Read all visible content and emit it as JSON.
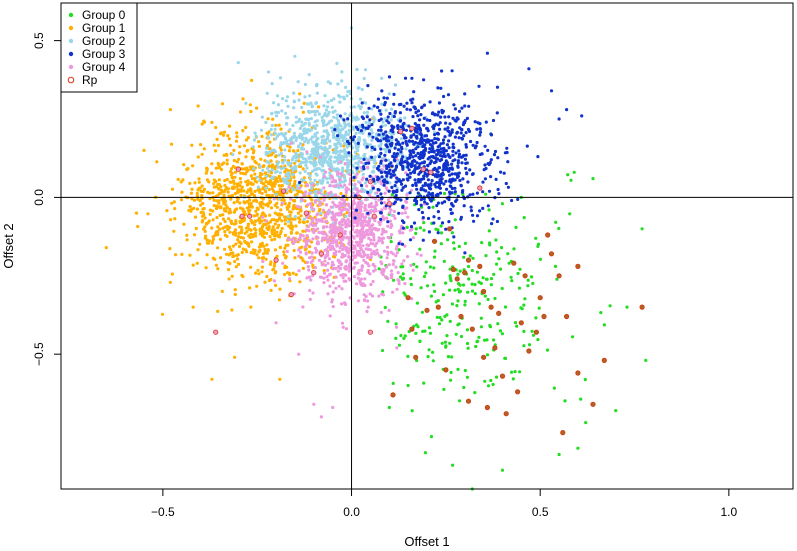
{
  "chart_data": {
    "type": "scatter",
    "xlabel": "Offset 1",
    "ylabel": "Offset 2",
    "xlim": [
      -0.77,
      1.17
    ],
    "ylim": [
      -0.93,
      0.62
    ],
    "x_ticks": [
      -0.5,
      0.0,
      0.5,
      1.0
    ],
    "x_tick_labels": [
      "−0.5",
      "0.0",
      "0.5",
      "1.0"
    ],
    "y_ticks": [
      -0.5,
      0.0,
      0.5
    ],
    "y_tick_labels": [
      "−0.5",
      "0.0",
      "0.5"
    ],
    "reference_lines": {
      "x": 0.0,
      "y": 0.0
    },
    "legend_position": "top-left",
    "grid": false,
    "series": [
      {
        "name": "Group 0",
        "color": "#22dd22",
        "marker": "filled-dot",
        "center": [
          0.3,
          -0.3
        ],
        "spread": [
          0.13,
          0.18
        ],
        "count": 280,
        "sample_points": [
          [
            0.32,
            -0.93
          ],
          [
            0.4,
            -0.87
          ],
          [
            0.6,
            -0.8
          ],
          [
            0.55,
            -0.82
          ],
          [
            0.7,
            -0.68
          ],
          [
            0.78,
            -0.52
          ],
          [
            0.73,
            -0.35
          ],
          [
            0.59,
            0.08
          ],
          [
            0.64,
            0.06
          ],
          [
            0.45,
            0.0
          ],
          [
            0.77,
            -0.1
          ],
          [
            0.1,
            -0.67
          ],
          [
            0.15,
            -0.6
          ]
        ]
      },
      {
        "name": "Group 1",
        "color": "#ffb000",
        "marker": "filled-dot",
        "center": [
          -0.24,
          -0.02
        ],
        "spread": [
          0.1,
          0.12
        ],
        "count": 1100,
        "sample_points": [
          [
            -0.65,
            -0.16
          ],
          [
            -0.57,
            -0.05
          ],
          [
            -0.48,
            0.28
          ],
          [
            -0.39,
            0.24
          ],
          [
            -0.37,
            -0.58
          ],
          [
            -0.31,
            -0.51
          ],
          [
            -0.19,
            -0.58
          ],
          [
            -0.55,
            0.15
          ],
          [
            -0.42,
            -0.35
          ]
        ]
      },
      {
        "name": "Group 2",
        "color": "#99d6ea",
        "marker": "filled-dot",
        "center": [
          -0.05,
          0.16
        ],
        "spread": [
          0.09,
          0.09
        ],
        "count": 900,
        "sample_points": [
          [
            -0.3,
            0.43
          ],
          [
            -0.15,
            0.45
          ],
          [
            0.0,
            0.54
          ],
          [
            -0.22,
            0.4
          ],
          [
            0.08,
            0.38
          ],
          [
            0.1,
            0.33
          ],
          [
            -0.28,
            0.3
          ]
        ]
      },
      {
        "name": "Group 3",
        "color": "#1133cc",
        "marker": "filled-dot",
        "center": [
          0.19,
          0.12
        ],
        "spread": [
          0.09,
          0.1
        ],
        "count": 850,
        "sample_points": [
          [
            0.36,
            0.46
          ],
          [
            0.53,
            0.34
          ],
          [
            0.55,
            0.25
          ],
          [
            0.57,
            0.28
          ],
          [
            0.61,
            0.26
          ],
          [
            0.47,
            0.41
          ],
          [
            0.16,
            0.38
          ],
          [
            0.3,
            0.33
          ]
        ]
      },
      {
        "name": "Group 4",
        "color": "#ee99dd",
        "marker": "filled-dot",
        "center": [
          0.0,
          -0.12
        ],
        "spread": [
          0.07,
          0.1
        ],
        "count": 900,
        "sample_points": [
          [
            -0.1,
            -0.66
          ],
          [
            -0.08,
            -0.7
          ],
          [
            -0.05,
            -0.67
          ],
          [
            -0.14,
            -0.5
          ],
          [
            0.12,
            -0.48
          ],
          [
            -0.2,
            -0.4
          ]
        ]
      },
      {
        "name": "Rp",
        "color": "#dd3311",
        "marker": "open-circle",
        "fill_colors": {
          "on_group_0": "#aa6622",
          "elsewhere": "#ee99cc"
        },
        "points": [
          [
            -0.36,
            -0.43
          ],
          [
            -0.29,
            -0.06
          ],
          [
            -0.3,
            0.09
          ],
          [
            -0.27,
            -0.06
          ],
          [
            -0.2,
            -0.2
          ],
          [
            -0.18,
            0.02
          ],
          [
            -0.16,
            -0.31
          ],
          [
            -0.12,
            -0.05
          ],
          [
            -0.1,
            -0.24
          ],
          [
            -0.03,
            -0.12
          ],
          [
            0.02,
            0.0
          ],
          [
            0.05,
            0.05
          ],
          [
            0.1,
            -0.02
          ],
          [
            0.13,
            0.21
          ],
          [
            0.16,
            0.22
          ],
          [
            0.19,
            0.09
          ],
          [
            0.21,
            0.08
          ],
          [
            0.34,
            0.03
          ],
          [
            0.05,
            -0.43
          ],
          [
            0.15,
            -0.32
          ],
          [
            0.2,
            -0.36
          ],
          [
            0.16,
            -0.42
          ],
          [
            0.22,
            -0.14
          ],
          [
            0.27,
            -0.23
          ],
          [
            0.3,
            -0.24
          ],
          [
            0.28,
            -0.26
          ],
          [
            0.29,
            -0.38
          ],
          [
            0.31,
            -0.2
          ],
          [
            0.32,
            -0.42
          ],
          [
            0.34,
            -0.22
          ],
          [
            0.35,
            -0.3
          ],
          [
            0.37,
            -0.35
          ],
          [
            0.38,
            -0.48
          ],
          [
            0.4,
            -0.57
          ],
          [
            0.41,
            -0.69
          ],
          [
            0.44,
            -0.62
          ],
          [
            0.45,
            -0.4
          ],
          [
            0.47,
            -0.49
          ],
          [
            0.5,
            -0.32
          ],
          [
            0.51,
            -0.38
          ],
          [
            0.52,
            -0.12
          ],
          [
            0.53,
            -0.18
          ],
          [
            0.55,
            -0.25
          ],
          [
            0.57,
            -0.38
          ],
          [
            0.6,
            -0.22
          ],
          [
            0.64,
            -0.66
          ],
          [
            0.67,
            -0.52
          ],
          [
            0.77,
            -0.35
          ],
          [
            0.25,
            -0.55
          ],
          [
            0.31,
            -0.65
          ],
          [
            0.36,
            -0.67
          ],
          [
            0.17,
            -0.51
          ],
          [
            0.11,
            -0.63
          ],
          [
            0.23,
            -0.35
          ],
          [
            0.26,
            -0.1
          ],
          [
            0.43,
            -0.21
          ],
          [
            0.46,
            -0.25
          ],
          [
            0.49,
            -0.43
          ],
          [
            0.56,
            -0.75
          ],
          [
            0.6,
            -0.56
          ],
          [
            0.35,
            -0.51
          ],
          [
            0.39,
            -0.37
          ],
          [
            0.06,
            -0.06
          ],
          [
            -0.08,
            -0.18
          ]
        ]
      }
    ]
  }
}
